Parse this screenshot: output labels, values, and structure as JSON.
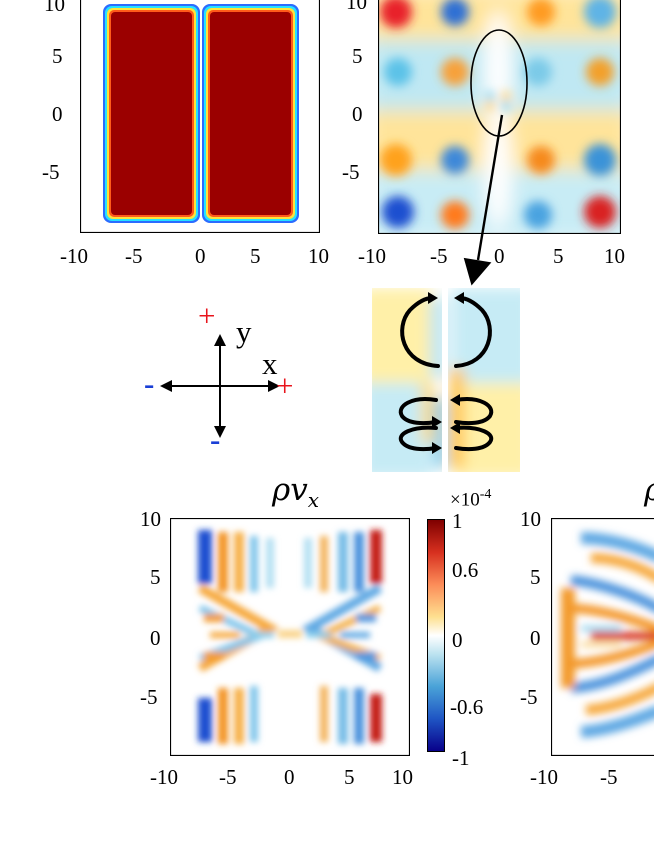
{
  "panel_a": {
    "y_ticks": [
      "10",
      "5",
      "0",
      "-5"
    ],
    "x_ticks": [
      "-10",
      "-5",
      "0",
      "5",
      "10"
    ]
  },
  "panel_b": {
    "y_ticks": [
      "10",
      "5",
      "0",
      "-5"
    ],
    "x_ticks": [
      "-10",
      "-5",
      "0",
      "5",
      "10"
    ]
  },
  "axes_icon": {
    "y_label": "y",
    "x_label": "x",
    "plus_y": "+",
    "plus_x": "+",
    "minus_x": "-",
    "minus_y": "-",
    "colors": {
      "plus": "#e8141c",
      "minus": "#1a3fd6"
    }
  },
  "panel_c": {
    "title": "ρv",
    "title_sub": "x",
    "y_ticks": [
      "10",
      "5",
      "0",
      "-5"
    ],
    "x_ticks": [
      "-10",
      "-5",
      "0",
      "5",
      "10"
    ],
    "colorbar": {
      "exponent": "×10",
      "exponent_power": "-4",
      "ticks": [
        "1",
        "0.6",
        "0",
        "-0.6",
        "-1"
      ],
      "colormap_colors": [
        "#7f0000",
        "#d7301f",
        "#fc8d59",
        "#fee090",
        "#ffffff",
        "#bde3f0",
        "#4aa3d8",
        "#1f55c4",
        "#08008a"
      ]
    }
  },
  "panel_d": {
    "title_partial": "ρ",
    "y_ticks": [
      "10",
      "5",
      "0",
      "-5"
    ],
    "x_ticks": [
      "-10",
      "-5"
    ]
  }
}
